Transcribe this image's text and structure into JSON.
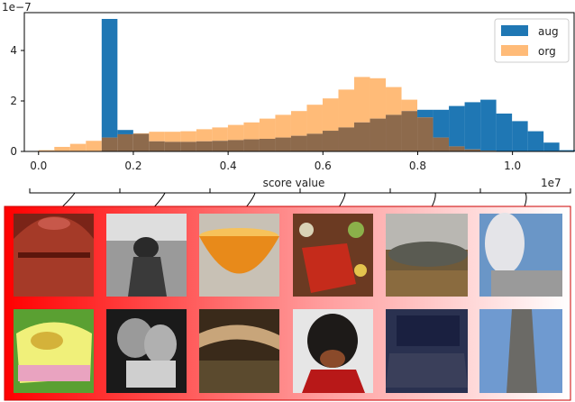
{
  "chart_data": {
    "type": "bar",
    "title": "",
    "xlabel": "score value",
    "ylabel": "",
    "x_offset_label": "1e7",
    "y_offset_label": "1e−7",
    "xlim": [
      -0.03,
      1.13
    ],
    "ylim": [
      0,
      5.5
    ],
    "x_ticks": [
      0.0,
      0.2,
      0.4,
      0.6,
      0.8,
      1.0
    ],
    "x_tick_labels": [
      "0.0",
      "0.2",
      "0.4",
      "0.6",
      "0.8",
      "1.0"
    ],
    "y_ticks": [
      0,
      2,
      4
    ],
    "y_tick_labels": [
      "0",
      "2",
      "4"
    ],
    "grid": false,
    "legend_position": "top-right",
    "bin_start": 0.0,
    "bin_width": 0.0333,
    "series": [
      {
        "name": "aug",
        "color": "#1f77b4",
        "values": [
          0.0,
          0.0,
          0.0,
          0.0,
          5.25,
          0.85,
          0.7,
          0.4,
          0.38,
          0.38,
          0.4,
          0.42,
          0.45,
          0.48,
          0.5,
          0.55,
          0.62,
          0.7,
          0.82,
          0.95,
          1.15,
          1.3,
          1.45,
          1.6,
          1.65,
          1.65,
          1.8,
          1.95,
          2.05,
          1.5,
          1.2,
          0.8,
          0.35,
          0.05
        ]
      },
      {
        "name": "org",
        "color": "#ffbb78",
        "values": [
          0.05,
          0.18,
          0.3,
          0.42,
          0.55,
          0.68,
          0.72,
          0.78,
          0.78,
          0.8,
          0.88,
          0.95,
          1.05,
          1.15,
          1.3,
          1.45,
          1.6,
          1.85,
          2.1,
          2.45,
          2.95,
          2.9,
          2.55,
          2.05,
          1.35,
          0.55,
          0.2,
          0.08,
          0.03,
          0.01,
          0.0,
          0.0,
          0.0,
          0.0
        ]
      }
    ],
    "overlap_color": "#8d6a4c"
  },
  "brackets": {
    "count": 6
  }
}
